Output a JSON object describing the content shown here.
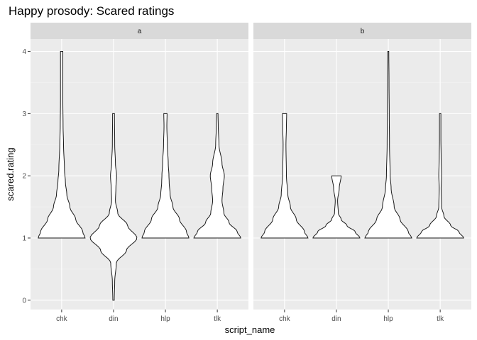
{
  "chart_data": {
    "type": "violin",
    "title": "Happy prosody: Scared ratings",
    "xlabel": "script_name",
    "ylabel": "scared.rating",
    "categories": [
      "chk",
      "din",
      "hlp",
      "tlk"
    ],
    "y_ticks": [
      0,
      1,
      2,
      3,
      4
    ],
    "ylim": [
      -0.15,
      4.2
    ],
    "grid": true,
    "panel_background": "#ebebeb",
    "strip_background": "#d9d9d9",
    "facets": [
      {
        "label": "a",
        "violins": [
          {
            "category": "chk",
            "min": 1,
            "max": 4,
            "profile": [
              [
                1,
                1.0
              ],
              [
                1.1,
                0.9
              ],
              [
                1.3,
                0.6
              ],
              [
                1.5,
                0.35
              ],
              [
                1.7,
                0.22
              ],
              [
                1.9,
                0.16
              ],
              [
                2.1,
                0.12
              ],
              [
                2.5,
                0.08
              ],
              [
                2.8,
                0.06
              ],
              [
                3.2,
                0.05
              ],
              [
                3.6,
                0.05
              ],
              [
                4,
                0.05
              ]
            ]
          },
          {
            "category": "din",
            "min": 0,
            "max": 3,
            "profile": [
              [
                0,
                0.03
              ],
              [
                0.3,
                0.05
              ],
              [
                0.6,
                0.12
              ],
              [
                0.8,
                0.55
              ],
              [
                1,
                1.0
              ],
              [
                1.2,
                0.6
              ],
              [
                1.4,
                0.18
              ],
              [
                1.6,
                0.08
              ],
              [
                1.8,
                0.1
              ],
              [
                2,
                0.13
              ],
              [
                2.2,
                0.08
              ],
              [
                2.5,
                0.05
              ],
              [
                3,
                0.04
              ]
            ]
          },
          {
            "category": "hlp",
            "min": 1,
            "max": 3,
            "profile": [
              [
                1,
                1.0
              ],
              [
                1.1,
                0.9
              ],
              [
                1.3,
                0.6
              ],
              [
                1.5,
                0.32
              ],
              [
                1.7,
                0.2
              ],
              [
                1.9,
                0.16
              ],
              [
                2,
                0.15
              ],
              [
                2.2,
                0.12
              ],
              [
                2.5,
                0.08
              ],
              [
                2.8,
                0.06
              ],
              [
                3,
                0.07
              ]
            ]
          },
          {
            "category": "tlk",
            "min": 1,
            "max": 3,
            "profile": [
              [
                1,
                1.0
              ],
              [
                1.1,
                0.85
              ],
              [
                1.25,
                0.5
              ],
              [
                1.4,
                0.28
              ],
              [
                1.6,
                0.2
              ],
              [
                1.8,
                0.24
              ],
              [
                2,
                0.3
              ],
              [
                2.2,
                0.2
              ],
              [
                2.5,
                0.07
              ],
              [
                2.8,
                0.04
              ],
              [
                3,
                0.03
              ]
            ]
          }
        ]
      },
      {
        "label": "b",
        "violins": [
          {
            "category": "chk",
            "min": 1,
            "max": 3,
            "profile": [
              [
                1,
                1.0
              ],
              [
                1.1,
                0.85
              ],
              [
                1.3,
                0.5
              ],
              [
                1.5,
                0.25
              ],
              [
                1.7,
                0.14
              ],
              [
                2,
                0.08
              ],
              [
                2.5,
                0.06
              ],
              [
                2.8,
                0.08
              ],
              [
                3,
                0.09
              ]
            ]
          },
          {
            "category": "din",
            "min": 1,
            "max": 2,
            "profile": [
              [
                1,
                1.0
              ],
              [
                1.1,
                0.8
              ],
              [
                1.2,
                0.45
              ],
              [
                1.3,
                0.2
              ],
              [
                1.4,
                0.08
              ],
              [
                1.6,
                0.05
              ],
              [
                1.8,
                0.12
              ],
              [
                2,
                0.2
              ]
            ]
          },
          {
            "category": "hlp",
            "min": 1,
            "max": 4,
            "profile": [
              [
                1,
                1.0
              ],
              [
                1.1,
                0.85
              ],
              [
                1.3,
                0.5
              ],
              [
                1.5,
                0.25
              ],
              [
                1.8,
                0.12
              ],
              [
                2,
                0.08
              ],
              [
                2.5,
                0.05
              ],
              [
                3,
                0.04
              ],
              [
                3.5,
                0.03
              ],
              [
                4,
                0.02
              ]
            ]
          },
          {
            "category": "tlk",
            "min": 1,
            "max": 3,
            "profile": [
              [
                1,
                1.0
              ],
              [
                1.1,
                0.8
              ],
              [
                1.2,
                0.45
              ],
              [
                1.35,
                0.16
              ],
              [
                1.5,
                0.06
              ],
              [
                1.8,
                0.04
              ],
              [
                2,
                0.06
              ],
              [
                2.3,
                0.04
              ],
              [
                2.6,
                0.03
              ],
              [
                3,
                0.03
              ]
            ]
          }
        ]
      }
    ]
  }
}
